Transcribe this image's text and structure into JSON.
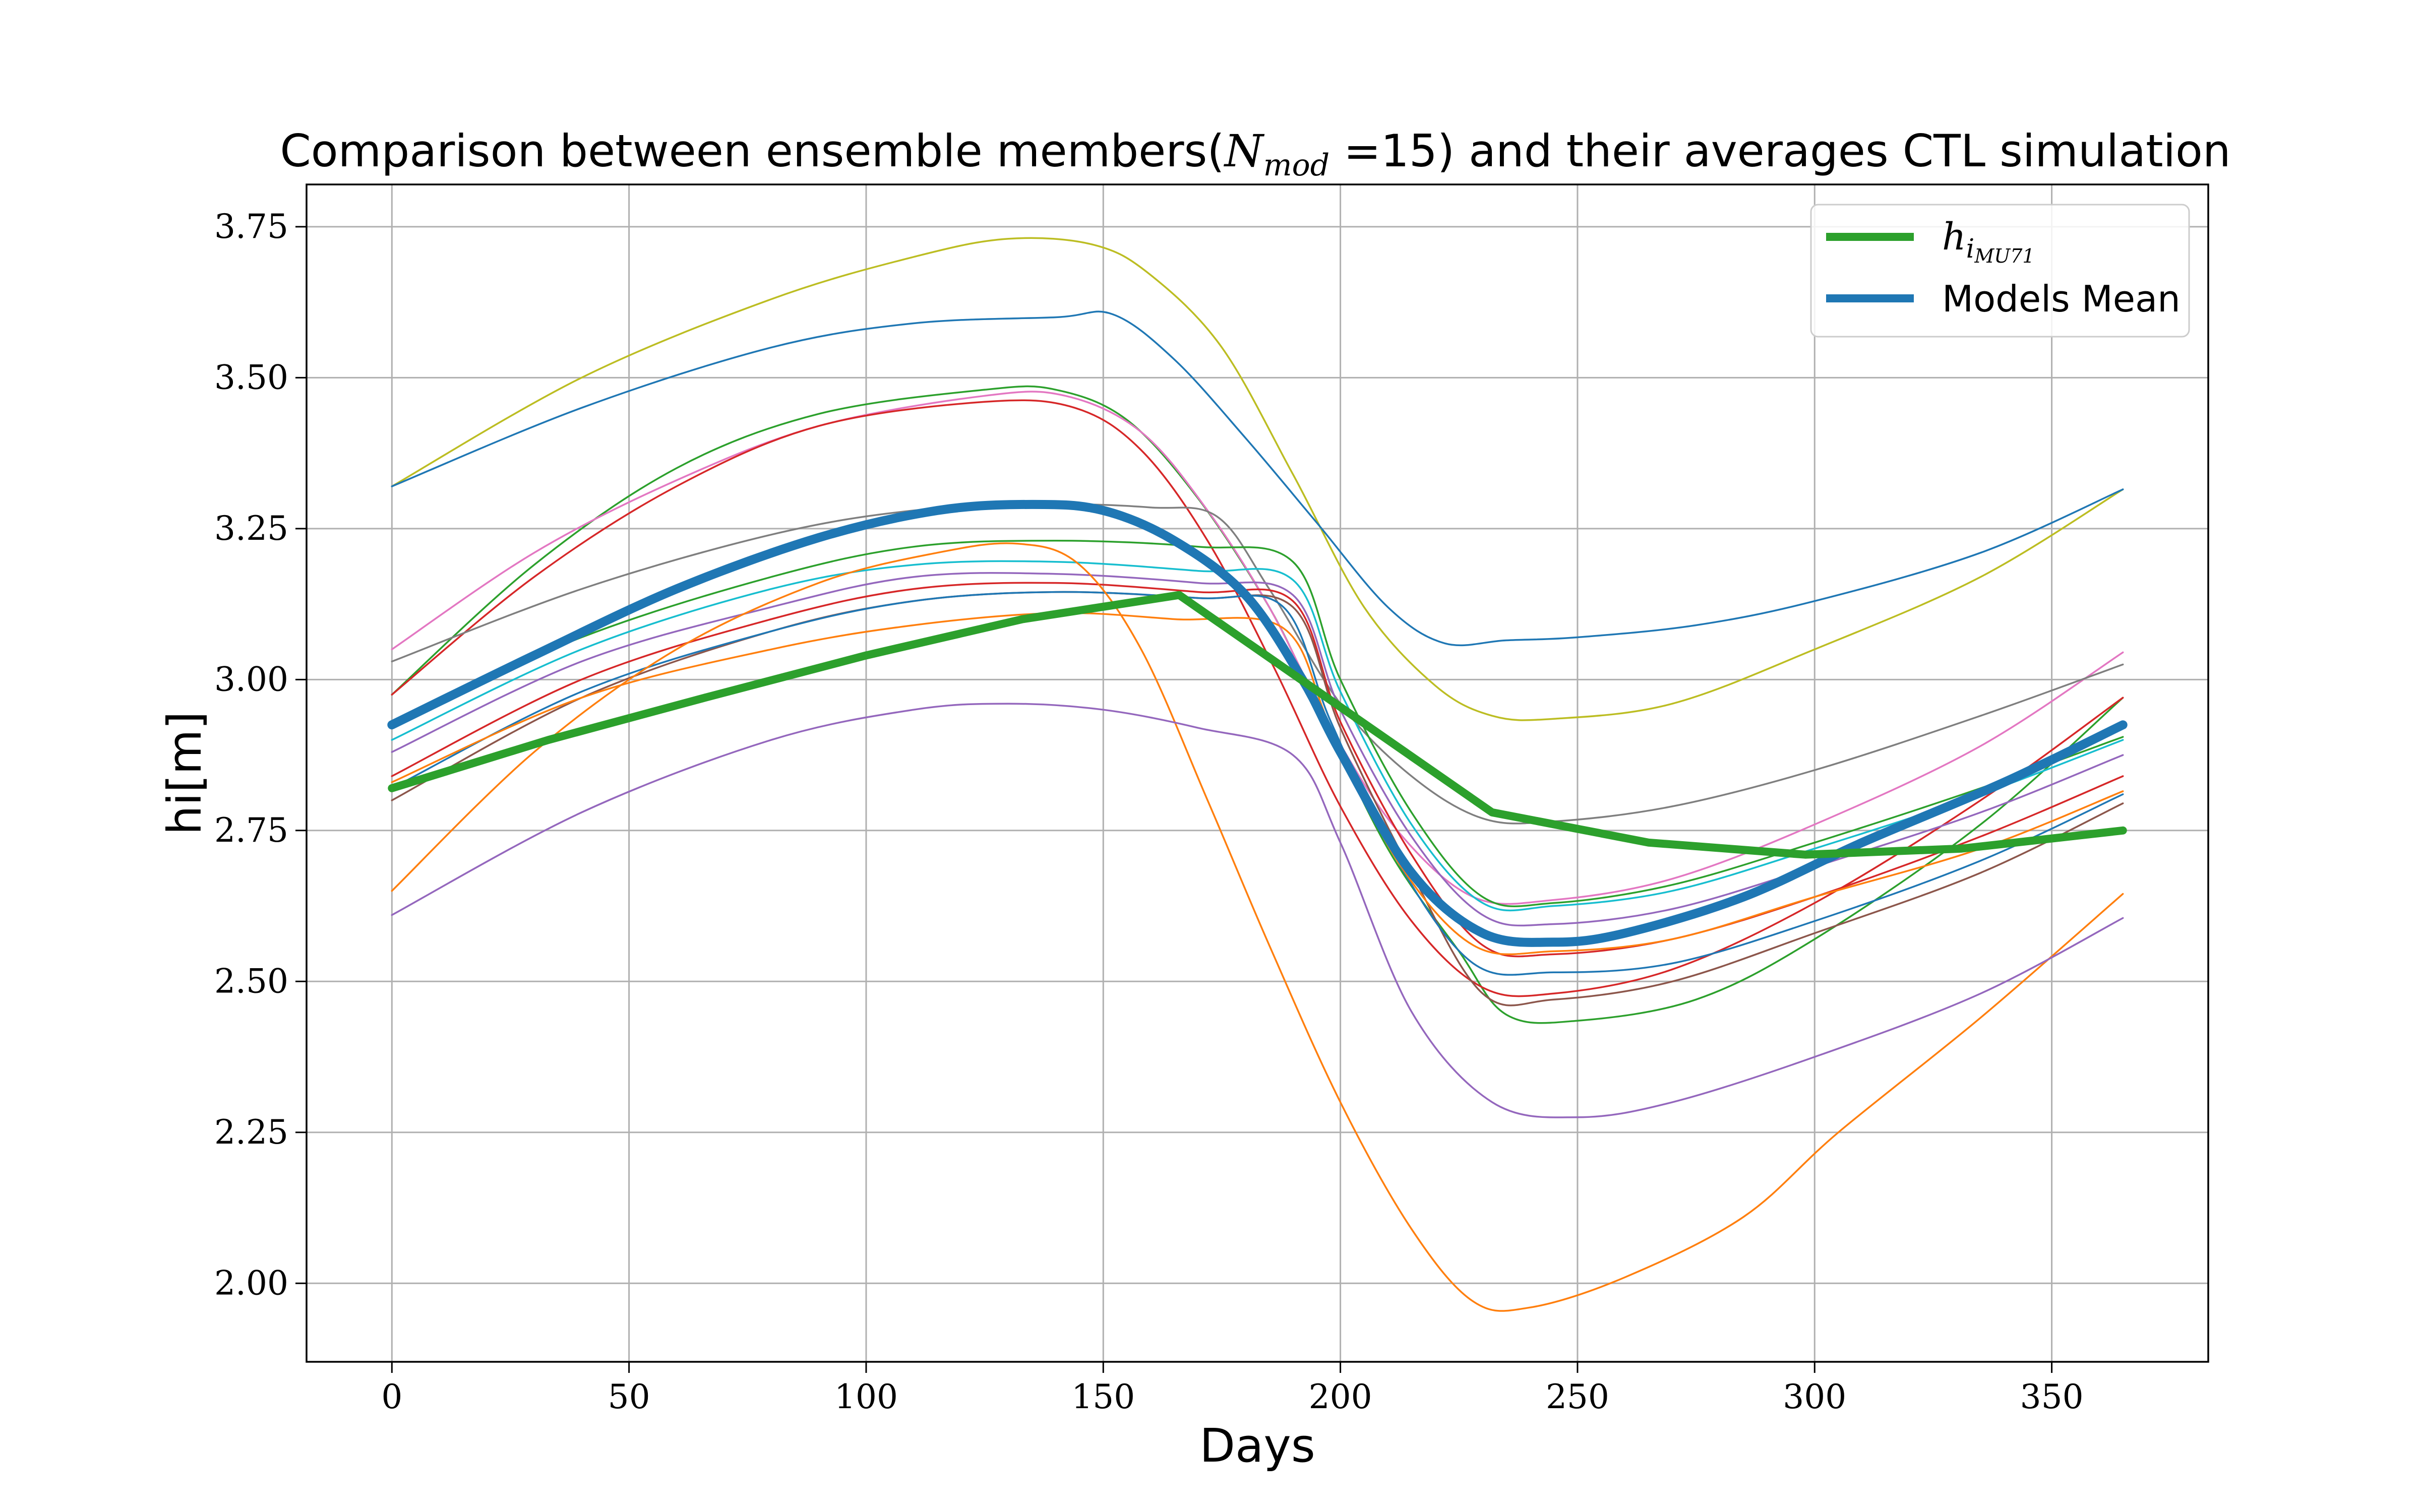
{
  "chart_data": {
    "type": "line",
    "title": {
      "prefix": "Comparison between ensemble members(",
      "math_base": "N",
      "math_sub": "mod",
      "math_eq": " =15",
      "suffix": ") and their averages CTL simulation"
    },
    "xlabel": "Days",
    "ylabel": "hi[m]",
    "xlim": [
      -18,
      383
    ],
    "ylim": [
      1.87,
      3.82
    ],
    "xticks": [
      0,
      50,
      100,
      150,
      200,
      250,
      300,
      350
    ],
    "yticks": [
      2.0,
      2.25,
      2.5,
      2.75,
      3.0,
      3.25,
      3.5,
      3.75
    ],
    "xtick_labels": [
      "0",
      "50",
      "100",
      "150",
      "200",
      "250",
      "300",
      "350"
    ],
    "ytick_labels": [
      "2.00",
      "2.25",
      "2.50",
      "2.75",
      "3.00",
      "3.25",
      "3.50",
      "3.75"
    ],
    "grid": true,
    "legend": {
      "placement": "top-right",
      "entries": [
        {
          "series": "observation",
          "base": "h",
          "sub1": "i",
          "sub2": "MU71"
        },
        {
          "series": "mean",
          "label": "Models Mean"
        }
      ]
    },
    "bold_series": [
      {
        "id": "observation",
        "color": "#2ca02c",
        "points": [
          [
            0,
            2.82
          ],
          [
            33,
            2.9
          ],
          [
            66,
            2.97
          ],
          [
            100,
            3.04
          ],
          [
            133,
            3.1
          ],
          [
            166,
            3.14
          ],
          [
            199,
            2.96
          ],
          [
            232,
            2.78
          ],
          [
            265,
            2.73
          ],
          [
            298,
            2.71
          ],
          [
            331,
            2.72
          ],
          [
            365,
            2.75
          ]
        ]
      },
      {
        "id": "mean",
        "color": "#1f77b4",
        "points": [
          [
            0,
            2.925
          ],
          [
            30,
            3.04
          ],
          [
            60,
            3.15
          ],
          [
            90,
            3.235
          ],
          [
            115,
            3.28
          ],
          [
            135,
            3.29
          ],
          [
            150,
            3.28
          ],
          [
            165,
            3.23
          ],
          [
            180,
            3.14
          ],
          [
            192,
            3.0
          ],
          [
            200,
            2.88
          ],
          [
            215,
            2.68
          ],
          [
            230,
            2.58
          ],
          [
            245,
            2.565
          ],
          [
            260,
            2.58
          ],
          [
            285,
            2.64
          ],
          [
            310,
            2.73
          ],
          [
            340,
            2.83
          ],
          [
            365,
            2.925
          ]
        ]
      }
    ],
    "member_series": [
      {
        "color": "#bcbd22",
        "points": [
          [
            0,
            3.32
          ],
          [
            40,
            3.5
          ],
          [
            80,
            3.63
          ],
          [
            110,
            3.7
          ],
          [
            130,
            3.73
          ],
          [
            148,
            3.72
          ],
          [
            160,
            3.67
          ],
          [
            175,
            3.55
          ],
          [
            190,
            3.34
          ],
          [
            205,
            3.12
          ],
          [
            220,
            2.99
          ],
          [
            232,
            2.94
          ],
          [
            245,
            2.935
          ],
          [
            270,
            2.96
          ],
          [
            300,
            3.05
          ],
          [
            335,
            3.17
          ],
          [
            365,
            3.315
          ]
        ]
      },
      {
        "color": "#1f77b4",
        "points": [
          [
            0,
            3.32
          ],
          [
            40,
            3.45
          ],
          [
            80,
            3.55
          ],
          [
            110,
            3.59
          ],
          [
            140,
            3.6
          ],
          [
            152,
            3.605
          ],
          [
            165,
            3.53
          ],
          [
            180,
            3.4
          ],
          [
            195,
            3.26
          ],
          [
            210,
            3.12
          ],
          [
            222,
            3.06
          ],
          [
            235,
            3.065
          ],
          [
            250,
            3.07
          ],
          [
            275,
            3.09
          ],
          [
            300,
            3.13
          ],
          [
            335,
            3.21
          ],
          [
            365,
            3.315
          ]
        ]
      },
      {
        "color": "#2ca02c",
        "points": [
          [
            0,
            2.975
          ],
          [
            30,
            3.19
          ],
          [
            60,
            3.35
          ],
          [
            90,
            3.44
          ],
          [
            125,
            3.48
          ],
          [
            140,
            3.48
          ],
          [
            155,
            3.43
          ],
          [
            170,
            3.3
          ],
          [
            185,
            3.12
          ],
          [
            195,
            2.96
          ],
          [
            210,
            2.72
          ],
          [
            225,
            2.55
          ],
          [
            235,
            2.445
          ],
          [
            250,
            2.435
          ],
          [
            275,
            2.47
          ],
          [
            300,
            2.57
          ],
          [
            335,
            2.76
          ],
          [
            365,
            2.97
          ]
        ]
      },
      {
        "color": "#e377c2",
        "points": [
          [
            0,
            3.05
          ],
          [
            30,
            3.21
          ],
          [
            60,
            3.33
          ],
          [
            90,
            3.42
          ],
          [
            125,
            3.47
          ],
          [
            142,
            3.47
          ],
          [
            158,
            3.41
          ],
          [
            172,
            3.28
          ],
          [
            185,
            3.12
          ],
          [
            198,
            2.92
          ],
          [
            212,
            2.75
          ],
          [
            228,
            2.64
          ],
          [
            245,
            2.635
          ],
          [
            270,
            2.67
          ],
          [
            300,
            2.76
          ],
          [
            335,
            2.89
          ],
          [
            365,
            3.045
          ]
        ]
      },
      {
        "color": "#d62728",
        "points": [
          [
            0,
            2.975
          ],
          [
            30,
            3.17
          ],
          [
            60,
            3.32
          ],
          [
            90,
            3.42
          ],
          [
            125,
            3.46
          ],
          [
            144,
            3.45
          ],
          [
            158,
            3.38
          ],
          [
            172,
            3.23
          ],
          [
            186,
            3.02
          ],
          [
            200,
            2.79
          ],
          [
            215,
            2.6
          ],
          [
            230,
            2.49
          ],
          [
            245,
            2.48
          ],
          [
            270,
            2.52
          ],
          [
            300,
            2.63
          ],
          [
            335,
            2.8
          ],
          [
            365,
            2.97
          ]
        ]
      },
      {
        "color": "#7f7f7f",
        "points": [
          [
            0,
            3.03
          ],
          [
            40,
            3.15
          ],
          [
            80,
            3.24
          ],
          [
            110,
            3.28
          ],
          [
            140,
            3.29
          ],
          [
            160,
            3.285
          ],
          [
            174,
            3.27
          ],
          [
            185,
            3.15
          ],
          [
            200,
            2.96
          ],
          [
            215,
            2.84
          ],
          [
            230,
            2.77
          ],
          [
            245,
            2.765
          ],
          [
            270,
            2.79
          ],
          [
            300,
            2.85
          ],
          [
            335,
            2.94
          ],
          [
            365,
            3.025
          ]
        ]
      },
      {
        "color": "#2ca02c",
        "points": [
          [
            0,
            2.93
          ],
          [
            40,
            3.07
          ],
          [
            80,
            3.17
          ],
          [
            110,
            3.22
          ],
          [
            140,
            3.23
          ],
          [
            170,
            3.22
          ],
          [
            190,
            3.195
          ],
          [
            200,
            3.0
          ],
          [
            215,
            2.78
          ],
          [
            230,
            2.64
          ],
          [
            245,
            2.63
          ],
          [
            270,
            2.66
          ],
          [
            300,
            2.73
          ],
          [
            335,
            2.82
          ],
          [
            365,
            2.905
          ]
        ]
      },
      {
        "color": "#17becf",
        "points": [
          [
            0,
            2.9
          ],
          [
            40,
            3.05
          ],
          [
            80,
            3.15
          ],
          [
            110,
            3.19
          ],
          [
            140,
            3.195
          ],
          [
            170,
            3.18
          ],
          [
            190,
            3.165
          ],
          [
            200,
            2.98
          ],
          [
            215,
            2.76
          ],
          [
            230,
            2.63
          ],
          [
            245,
            2.625
          ],
          [
            270,
            2.65
          ],
          [
            300,
            2.72
          ],
          [
            335,
            2.81
          ],
          [
            365,
            2.9
          ]
        ]
      },
      {
        "color": "#9467bd",
        "points": [
          [
            0,
            2.88
          ],
          [
            40,
            3.03
          ],
          [
            80,
            3.12
          ],
          [
            110,
            3.17
          ],
          [
            140,
            3.175
          ],
          [
            170,
            3.16
          ],
          [
            190,
            3.14
          ],
          [
            200,
            2.95
          ],
          [
            215,
            2.74
          ],
          [
            230,
            2.61
          ],
          [
            245,
            2.595
          ],
          [
            270,
            2.62
          ],
          [
            300,
            2.69
          ],
          [
            335,
            2.78
          ],
          [
            365,
            2.875
          ]
        ]
      },
      {
        "color": "#d62728",
        "points": [
          [
            0,
            2.84
          ],
          [
            40,
            3.0
          ],
          [
            80,
            3.1
          ],
          [
            110,
            3.15
          ],
          [
            140,
            3.16
          ],
          [
            170,
            3.145
          ],
          [
            190,
            3.13
          ],
          [
            200,
            2.93
          ],
          [
            215,
            2.71
          ],
          [
            230,
            2.56
          ],
          [
            245,
            2.545
          ],
          [
            270,
            2.57
          ],
          [
            300,
            2.64
          ],
          [
            335,
            2.74
          ],
          [
            365,
            2.84
          ]
        ]
      },
      {
        "color": "#8c564b",
        "points": [
          [
            0,
            2.8
          ],
          [
            40,
            2.97
          ],
          [
            80,
            3.08
          ],
          [
            110,
            3.13
          ],
          [
            140,
            3.145
          ],
          [
            170,
            3.135
          ],
          [
            190,
            3.12
          ],
          [
            200,
            2.92
          ],
          [
            215,
            2.68
          ],
          [
            230,
            2.48
          ],
          [
            245,
            2.47
          ],
          [
            270,
            2.5
          ],
          [
            300,
            2.58
          ],
          [
            335,
            2.68
          ],
          [
            365,
            2.795
          ]
        ]
      },
      {
        "color": "#1f77b4",
        "points": [
          [
            0,
            2.82
          ],
          [
            40,
            2.98
          ],
          [
            80,
            3.08
          ],
          [
            110,
            3.13
          ],
          [
            140,
            3.145
          ],
          [
            170,
            3.135
          ],
          [
            188,
            3.12
          ],
          [
            198,
            2.93
          ],
          [
            212,
            2.7
          ],
          [
            228,
            2.53
          ],
          [
            245,
            2.515
          ],
          [
            270,
            2.53
          ],
          [
            300,
            2.6
          ],
          [
            335,
            2.7
          ],
          [
            365,
            2.81
          ]
        ]
      },
      {
        "color": "#ff7f0e",
        "points": [
          [
            0,
            2.83
          ],
          [
            40,
            2.97
          ],
          [
            80,
            3.05
          ],
          [
            110,
            3.09
          ],
          [
            140,
            3.11
          ],
          [
            165,
            3.1
          ],
          [
            188,
            3.085
          ],
          [
            198,
            2.92
          ],
          [
            212,
            2.7
          ],
          [
            228,
            2.56
          ],
          [
            245,
            2.55
          ],
          [
            270,
            2.57
          ],
          [
            300,
            2.64
          ],
          [
            335,
            2.72
          ],
          [
            365,
            2.815
          ]
        ]
      },
      {
        "color": "#ff7f0e",
        "points": [
          [
            0,
            2.65
          ],
          [
            30,
            2.88
          ],
          [
            60,
            3.05
          ],
          [
            90,
            3.16
          ],
          [
            115,
            3.21
          ],
          [
            132,
            3.225
          ],
          [
            145,
            3.19
          ],
          [
            158,
            3.05
          ],
          [
            172,
            2.8
          ],
          [
            185,
            2.56
          ],
          [
            200,
            2.3
          ],
          [
            215,
            2.09
          ],
          [
            228,
            1.97
          ],
          [
            240,
            1.96
          ],
          [
            260,
            2.01
          ],
          [
            285,
            2.11
          ],
          [
            305,
            2.25
          ],
          [
            335,
            2.44
          ],
          [
            365,
            2.645
          ]
        ]
      },
      {
        "color": "#9467bd",
        "points": [
          [
            0,
            2.61
          ],
          [
            40,
            2.78
          ],
          [
            80,
            2.9
          ],
          [
            110,
            2.95
          ],
          [
            130,
            2.96
          ],
          [
            150,
            2.95
          ],
          [
            170,
            2.92
          ],
          [
            190,
            2.875
          ],
          [
            200,
            2.73
          ],
          [
            215,
            2.45
          ],
          [
            232,
            2.3
          ],
          [
            250,
            2.275
          ],
          [
            270,
            2.3
          ],
          [
            300,
            2.375
          ],
          [
            335,
            2.48
          ],
          [
            365,
            2.605
          ]
        ]
      }
    ]
  }
}
